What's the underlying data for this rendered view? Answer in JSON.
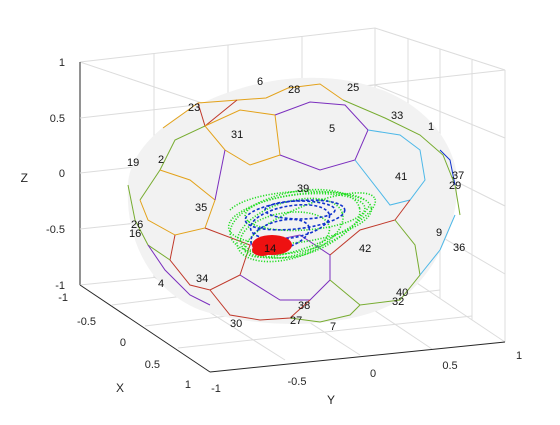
{
  "chart_data": {
    "type": "3d-scatter-polyhedron",
    "axes": {
      "x": {
        "label": "X",
        "ticks": [
          "-1",
          "-0.5",
          "0",
          "0.5",
          "1"
        ],
        "range": [
          -1,
          1
        ]
      },
      "y": {
        "label": "Y",
        "ticks": [
          "-1",
          "-0.5",
          "0",
          "0.5",
          "1"
        ],
        "range": [
          -1,
          1
        ]
      },
      "z": {
        "label": "Z",
        "ticks": [
          "-1",
          "-0.5",
          "0",
          "0.5",
          "1"
        ],
        "range": [
          -1,
          1
        ]
      }
    },
    "grid": true,
    "face_labels": [
      "1",
      "2",
      "4",
      "6",
      "7",
      "9",
      "19",
      "23",
      "25",
      "26",
      "27",
      "28",
      "29",
      "30",
      "31",
      "32",
      "33",
      "34",
      "35",
      "36",
      "37",
      "38",
      "39",
      "40",
      "41",
      "42",
      "5",
      "14",
      "16"
    ],
    "series": [
      {
        "color": "#22dd22",
        "marker": "dot",
        "description": "dense trajectory points"
      },
      {
        "color": "#1133cc",
        "marker": "dash"
      },
      {
        "color": "#ee1111",
        "marker": "dot"
      }
    ],
    "colors": {
      "face_fill": "#f2f2f2",
      "edges": [
        "#e3a21a",
        "#7b2fbe",
        "#c0392b",
        "#4db8e8",
        "#77ac30"
      ]
    }
  }
}
